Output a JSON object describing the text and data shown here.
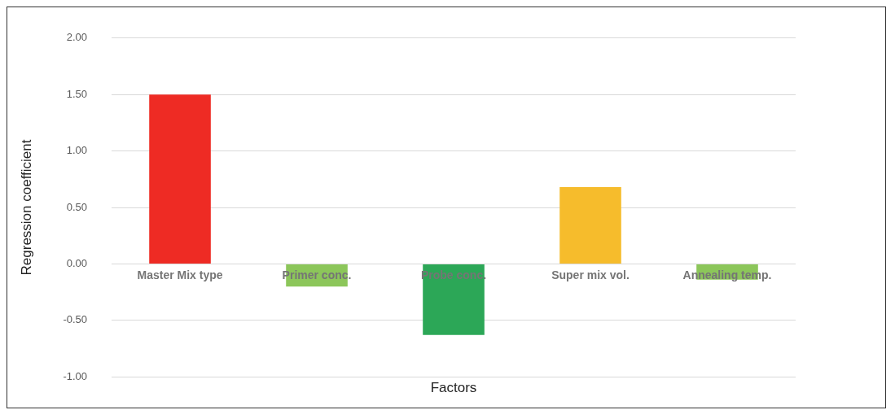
{
  "chart_data": {
    "type": "bar",
    "xlabel": "Factors",
    "ylabel": "Regression coefficient",
    "categories": [
      "Master Mix type",
      "Primer conc.",
      "Probe conc.",
      "Super mix vol.",
      "Annealing temp."
    ],
    "values": [
      1.5,
      -0.2,
      -0.63,
      0.68,
      -0.14
    ],
    "colors": [
      "#ee2b24",
      "#8cc65a",
      "#2ca757",
      "#f6bc2c",
      "#8cc65a"
    ],
    "ylim": [
      -1,
      2
    ],
    "yticks": [
      {
        "value": -1,
        "label": "-1.00"
      },
      {
        "value": -0.5,
        "label": "-0.50"
      },
      {
        "value": 0,
        "label": "0.00"
      },
      {
        "value": 0.5,
        "label": "0.50"
      },
      {
        "value": 1,
        "label": "1.00"
      },
      {
        "value": 1.5,
        "label": "1.50"
      },
      {
        "value": 2,
        "label": "2.00"
      }
    ],
    "grid": "y",
    "legend": false
  }
}
